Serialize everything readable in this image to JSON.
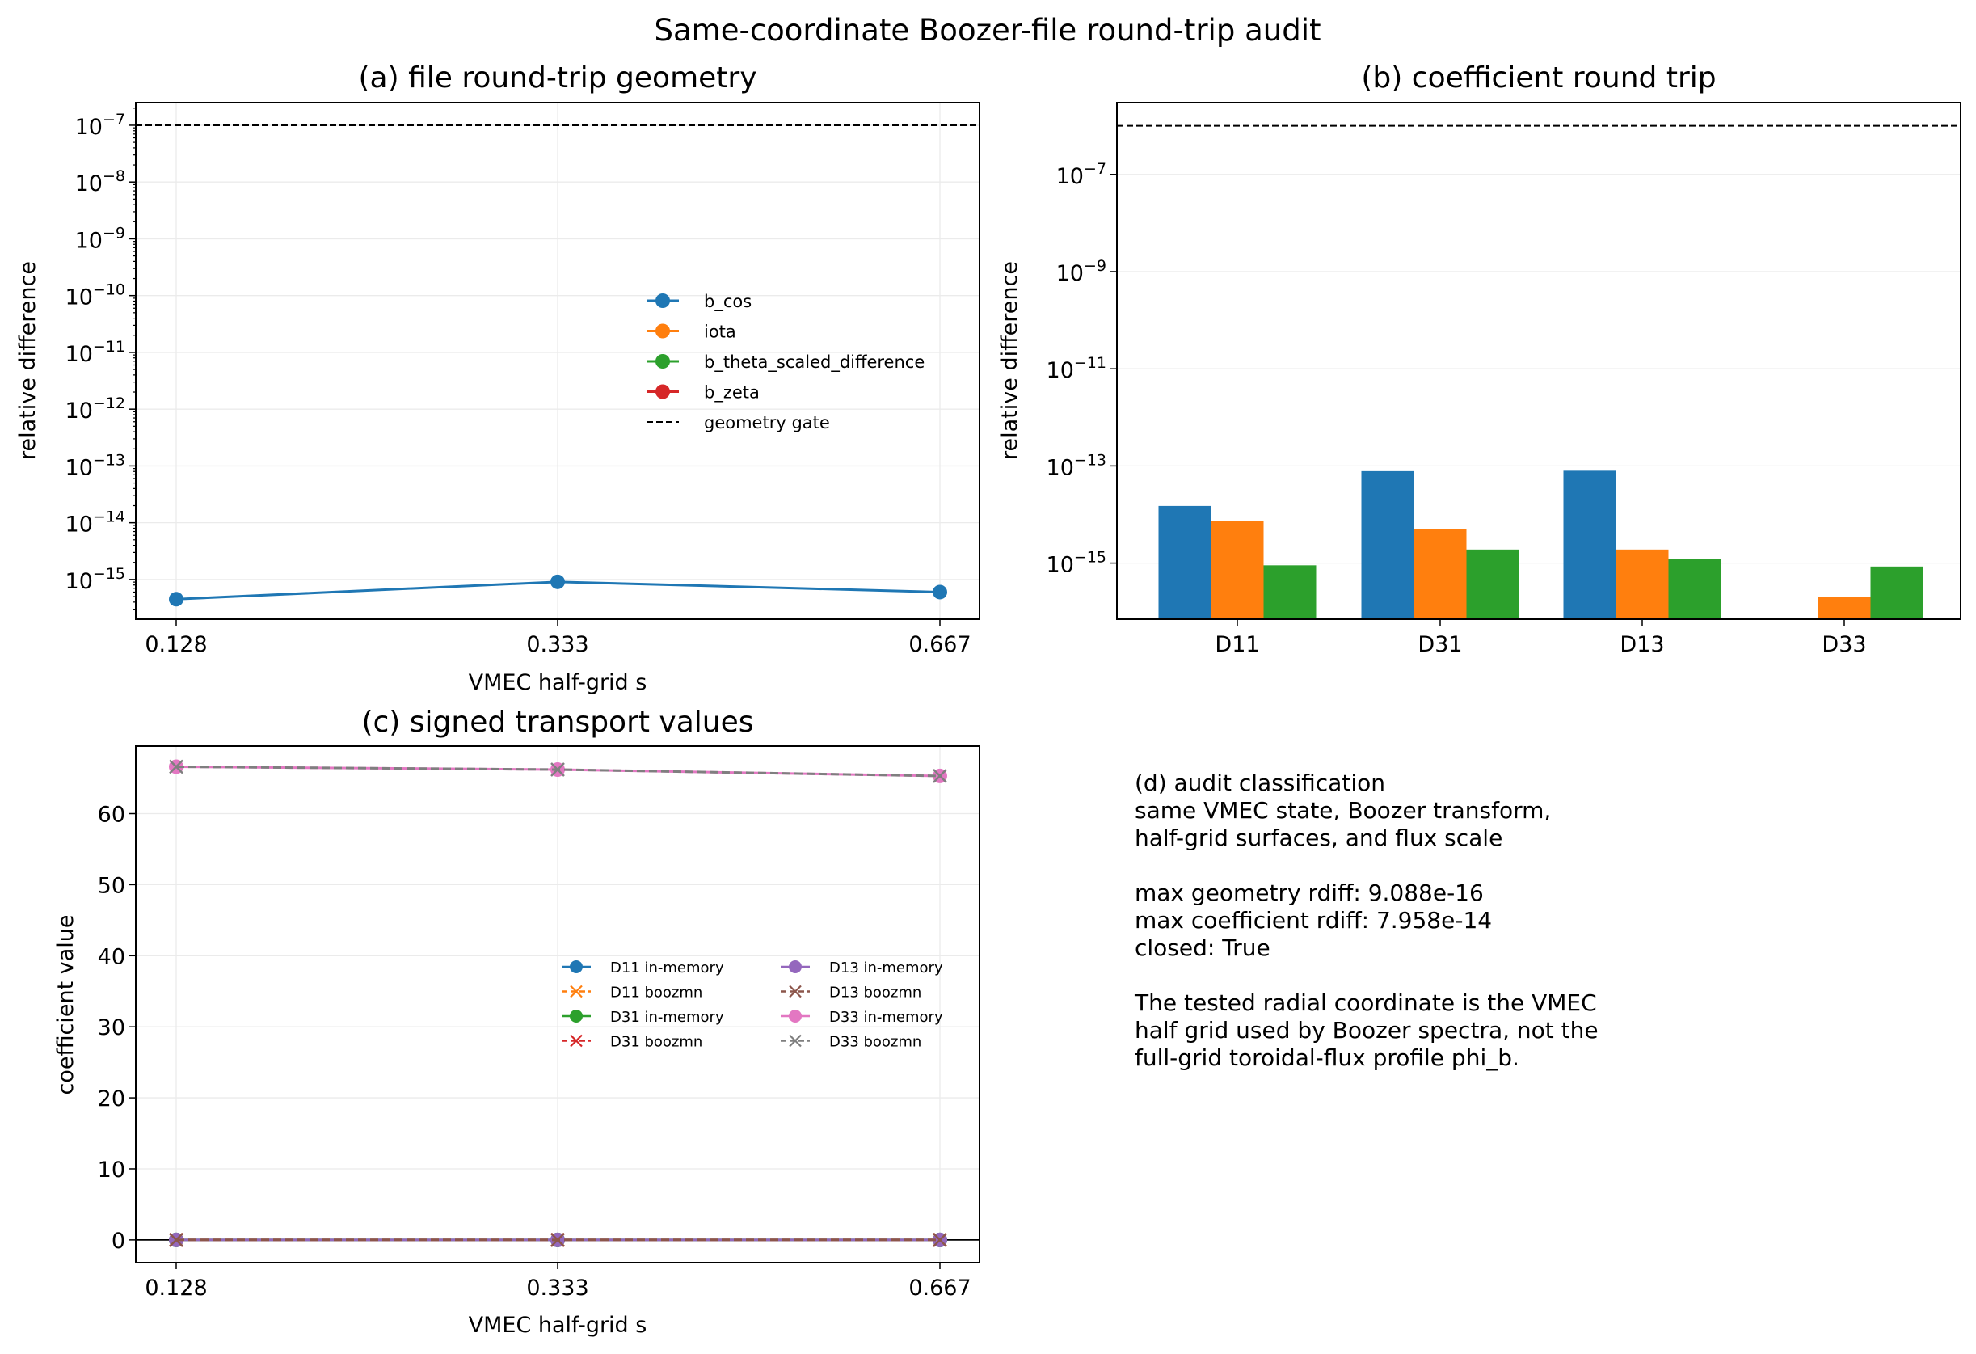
{
  "figure": {
    "title": "Same-coordinate Boozer-file round-trip audit"
  },
  "chart_data": [
    {
      "panel": "a",
      "type": "line",
      "title": "(a) file round-trip geometry",
      "xlabel": "VMEC half-grid s",
      "ylabel": "relative difference",
      "yscale": "log",
      "ylim": [
        2e-16,
        2.5e-07
      ],
      "x": [
        0.128,
        0.333,
        0.667
      ],
      "x_tick_labels": [
        "0.128",
        "0.333",
        "0.667"
      ],
      "y_ticks": [
        {
          "value": 1e-07,
          "base": "10",
          "exp": "−7"
        },
        {
          "value": 1e-08,
          "base": "10",
          "exp": "−8"
        },
        {
          "value": 1e-09,
          "base": "10",
          "exp": "−9"
        },
        {
          "value": 1e-10,
          "base": "10",
          "exp": "−10"
        },
        {
          "value": 1e-11,
          "base": "10",
          "exp": "−11"
        },
        {
          "value": 1e-12,
          "base": "10",
          "exp": "−12"
        },
        {
          "value": 1e-13,
          "base": "10",
          "exp": "−13"
        },
        {
          "value": 1e-14,
          "base": "10",
          "exp": "−14"
        },
        {
          "value": 1e-15,
          "base": "10",
          "exp": "−15"
        }
      ],
      "series": [
        {
          "name": "b_cos",
          "color": "#1f77b4",
          "marker": "circle",
          "values": [
            4.5e-16,
            9.088e-16,
            6e-16
          ]
        },
        {
          "name": "iota",
          "color": "#ff7f0e",
          "marker": "circle",
          "values": [
            0,
            0,
            0
          ]
        },
        {
          "name": "b_theta_scaled_difference",
          "color": "#2ca02c",
          "marker": "circle",
          "values": [
            0,
            0,
            0
          ]
        },
        {
          "name": "b_zeta",
          "color": "#d62728",
          "marker": "circle",
          "values": [
            0,
            0,
            0
          ]
        }
      ],
      "reference_line": {
        "name": "geometry gate",
        "value": 1e-07,
        "style": "dashed",
        "color": "#000000"
      },
      "grid": true,
      "legend_position": "center-right"
    },
    {
      "panel": "b",
      "type": "bar",
      "title": "(b) coefficient round trip",
      "xlabel": "",
      "ylabel": "relative difference",
      "yscale": "log",
      "ylim": [
        7e-17,
        3e-06
      ],
      "categories": [
        "D11",
        "D31",
        "D13",
        "D33"
      ],
      "y_ticks": [
        {
          "value": 1e-07,
          "base": "10",
          "exp": "−7"
        },
        {
          "value": 1e-09,
          "base": "10",
          "exp": "−9"
        },
        {
          "value": 1e-11,
          "base": "10",
          "exp": "−11"
        },
        {
          "value": 1e-13,
          "base": "10",
          "exp": "−13"
        },
        {
          "value": 1e-15,
          "base": "10",
          "exp": "−15"
        }
      ],
      "series": [
        {
          "color": "#1f77b4",
          "values": [
            1.5e-14,
            7.8e-14,
            7.958e-14,
            0
          ]
        },
        {
          "color": "#ff7f0e",
          "values": [
            7.5e-15,
            5e-15,
            1.9e-15,
            2e-16
          ]
        },
        {
          "color": "#2ca02c",
          "values": [
            9e-16,
            1.9e-15,
            1.2e-15,
            8.5e-16
          ]
        }
      ],
      "reference_line": {
        "value": 1e-06,
        "style": "dashed",
        "color": "#000000"
      },
      "grid": true
    },
    {
      "panel": "c",
      "type": "line",
      "title": "(c) signed transport values",
      "xlabel": "VMEC half-grid s",
      "ylabel": "coefficient value",
      "ylim": [
        -3.2,
        69.5
      ],
      "y_ticks": [
        0,
        10,
        20,
        30,
        40,
        50,
        60
      ],
      "x": [
        0.128,
        0.333,
        0.667
      ],
      "x_tick_labels": [
        "0.128",
        "0.333",
        "0.667"
      ],
      "series": [
        {
          "name": "D11 in-memory",
          "color": "#1f77b4",
          "marker": "circle",
          "style": "solid",
          "values": [
            0.0,
            0.0,
            0.0
          ]
        },
        {
          "name": "D11 boozmn",
          "color": "#ff7f0e",
          "marker": "x",
          "style": "dashed",
          "values": [
            0.0,
            0.0,
            0.0
          ]
        },
        {
          "name": "D31 in-memory",
          "color": "#2ca02c",
          "marker": "circle",
          "style": "solid",
          "values": [
            0.0,
            0.0,
            0.0
          ]
        },
        {
          "name": "D31 boozmn",
          "color": "#d62728",
          "marker": "x",
          "style": "dashed",
          "values": [
            0.0,
            0.0,
            0.0
          ]
        },
        {
          "name": "D13 in-memory",
          "color": "#9467bd",
          "marker": "circle",
          "style": "solid",
          "values": [
            0.0,
            0.0,
            0.0
          ]
        },
        {
          "name": "D13 boozmn",
          "color": "#8c564b",
          "marker": "x",
          "style": "dashed",
          "values": [
            0.0,
            0.0,
            0.0
          ]
        },
        {
          "name": "D33 in-memory",
          "color": "#e377c2",
          "marker": "circle",
          "style": "solid",
          "values": [
            66.6,
            66.2,
            65.3
          ]
        },
        {
          "name": "D33 boozmn",
          "color": "#7f7f7f",
          "marker": "x",
          "style": "dashed",
          "values": [
            66.6,
            66.2,
            65.3
          ]
        }
      ],
      "zero_line": true,
      "grid": true,
      "legend_position": "center-right",
      "legend_columns": 2
    }
  ],
  "panel_d": {
    "lines": [
      "(d) audit classification",
      "same VMEC state, Boozer transform,",
      "half-grid surfaces, and flux scale",
      "",
      "max geometry rdiff: 9.088e-16",
      "max coefficient rdiff: 7.958e-14",
      "closed: True",
      "",
      "The tested radial coordinate is the VMEC",
      "half grid used by Boozer spectra, not the",
      "full-grid toroidal-flux profile phi_b."
    ]
  }
}
